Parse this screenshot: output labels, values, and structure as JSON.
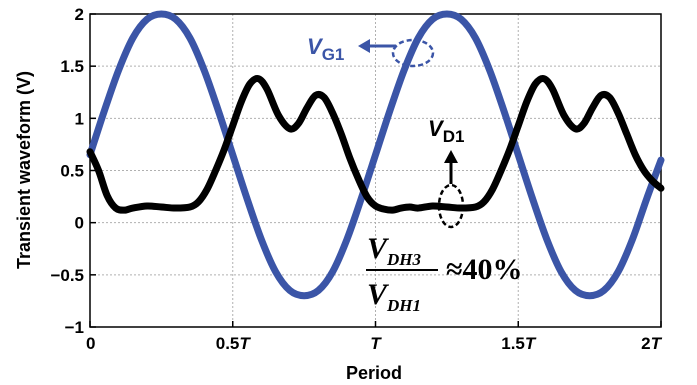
{
  "chart_data": {
    "type": "line",
    "xlabel": "Period",
    "ylabel": "Transient waveform (V)",
    "xlim": [
      0,
      2
    ],
    "ylim": [
      -1,
      2
    ],
    "grid": true,
    "x_ticks": [
      {
        "value": 0,
        "pre": "0",
        "italic": ""
      },
      {
        "value": 0.5,
        "pre": "0.5",
        "italic": "T"
      },
      {
        "value": 1,
        "pre": "",
        "italic": "T"
      },
      {
        "value": 1.5,
        "pre": "1.5",
        "italic": "T"
      },
      {
        "value": 2,
        "pre": "2",
        "italic": "T"
      }
    ],
    "y_ticks": [
      {
        "value": -1,
        "label": "−1"
      },
      {
        "value": -0.5,
        "label": "−0.5"
      },
      {
        "value": 0,
        "label": "0"
      },
      {
        "value": 0.5,
        "label": "0.5"
      },
      {
        "value": 1,
        "label": "1"
      },
      {
        "value": 1.5,
        "label": "1.5"
      },
      {
        "value": 2,
        "label": "2"
      }
    ],
    "series": [
      {
        "name": "V_G1",
        "color": "#3b55a7",
        "x": [
          0,
          0.05,
          0.1,
          0.15,
          0.2,
          0.25,
          0.3,
          0.35,
          0.4,
          0.45,
          0.5,
          0.55,
          0.6,
          0.65,
          0.7,
          0.75,
          0.8,
          0.85,
          0.9,
          0.95,
          1.0,
          1.05,
          1.1,
          1.15,
          1.2,
          1.25,
          1.3,
          1.35,
          1.4,
          1.45,
          1.5,
          1.55,
          1.6,
          1.65,
          1.7,
          1.75,
          1.8,
          1.85,
          1.9,
          1.95,
          2.0
        ],
        "y": [
          0.65,
          1.07,
          1.46,
          1.77,
          1.95,
          2.0,
          1.95,
          1.77,
          1.46,
          1.07,
          0.65,
          0.23,
          -0.16,
          -0.47,
          -0.65,
          -0.7,
          -0.65,
          -0.47,
          -0.16,
          0.23,
          0.65,
          1.07,
          1.46,
          1.77,
          1.95,
          2.0,
          1.95,
          1.77,
          1.46,
          1.07,
          0.65,
          0.23,
          -0.16,
          -0.47,
          -0.65,
          -0.7,
          -0.65,
          -0.47,
          -0.16,
          0.23,
          0.6
        ]
      },
      {
        "name": "V_D1",
        "color": "#000000",
        "x": [
          0,
          0.03,
          0.06,
          0.09,
          0.12,
          0.15,
          0.2,
          0.25,
          0.3,
          0.35,
          0.38,
          0.41,
          0.44,
          0.47,
          0.5,
          0.53,
          0.56,
          0.59,
          0.62,
          0.66,
          0.7,
          0.73,
          0.76,
          0.79,
          0.82,
          0.85,
          0.88,
          0.91,
          0.94,
          0.97,
          1.0,
          1.03,
          1.06,
          1.09,
          1.12,
          1.15,
          1.2,
          1.25,
          1.3,
          1.35,
          1.38,
          1.41,
          1.44,
          1.47,
          1.5,
          1.53,
          1.56,
          1.59,
          1.62,
          1.66,
          1.7,
          1.73,
          1.76,
          1.79,
          1.82,
          1.85,
          1.88,
          1.91,
          1.94,
          1.97,
          2.0
        ],
        "y": [
          0.68,
          0.5,
          0.26,
          0.14,
          0.12,
          0.14,
          0.16,
          0.15,
          0.14,
          0.15,
          0.2,
          0.32,
          0.5,
          0.7,
          0.93,
          1.16,
          1.33,
          1.38,
          1.28,
          1.03,
          0.9,
          0.95,
          1.1,
          1.22,
          1.2,
          1.05,
          0.85,
          0.62,
          0.42,
          0.25,
          0.16,
          0.13,
          0.12,
          0.14,
          0.15,
          0.14,
          0.16,
          0.15,
          0.14,
          0.15,
          0.2,
          0.32,
          0.5,
          0.7,
          0.93,
          1.16,
          1.33,
          1.38,
          1.28,
          1.03,
          0.9,
          0.95,
          1.1,
          1.22,
          1.2,
          1.05,
          0.85,
          0.65,
          0.5,
          0.4,
          0.33
        ]
      }
    ],
    "annotations": {
      "vg1_main": "V",
      "vg1_sub": "G1",
      "vd1_main": "V",
      "vd1_sub": "D1",
      "ratio_num_main": "V",
      "ratio_num_sub": "DH3",
      "ratio_den_main": "V",
      "ratio_den_sub": "DH1",
      "ratio_value": "≈40%"
    }
  }
}
